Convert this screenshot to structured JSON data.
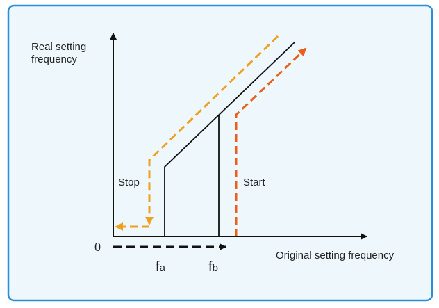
{
  "y_axis_label": [
    "Real setting",
    "frequency"
  ],
  "x_axis_label": "Original setting frequency",
  "origin": "0",
  "markers": [
    {
      "symbol": "f",
      "sub": "a"
    },
    {
      "symbol": "f",
      "sub": "b"
    }
  ],
  "stop_label": "Stop",
  "start_label": "Start"
}
